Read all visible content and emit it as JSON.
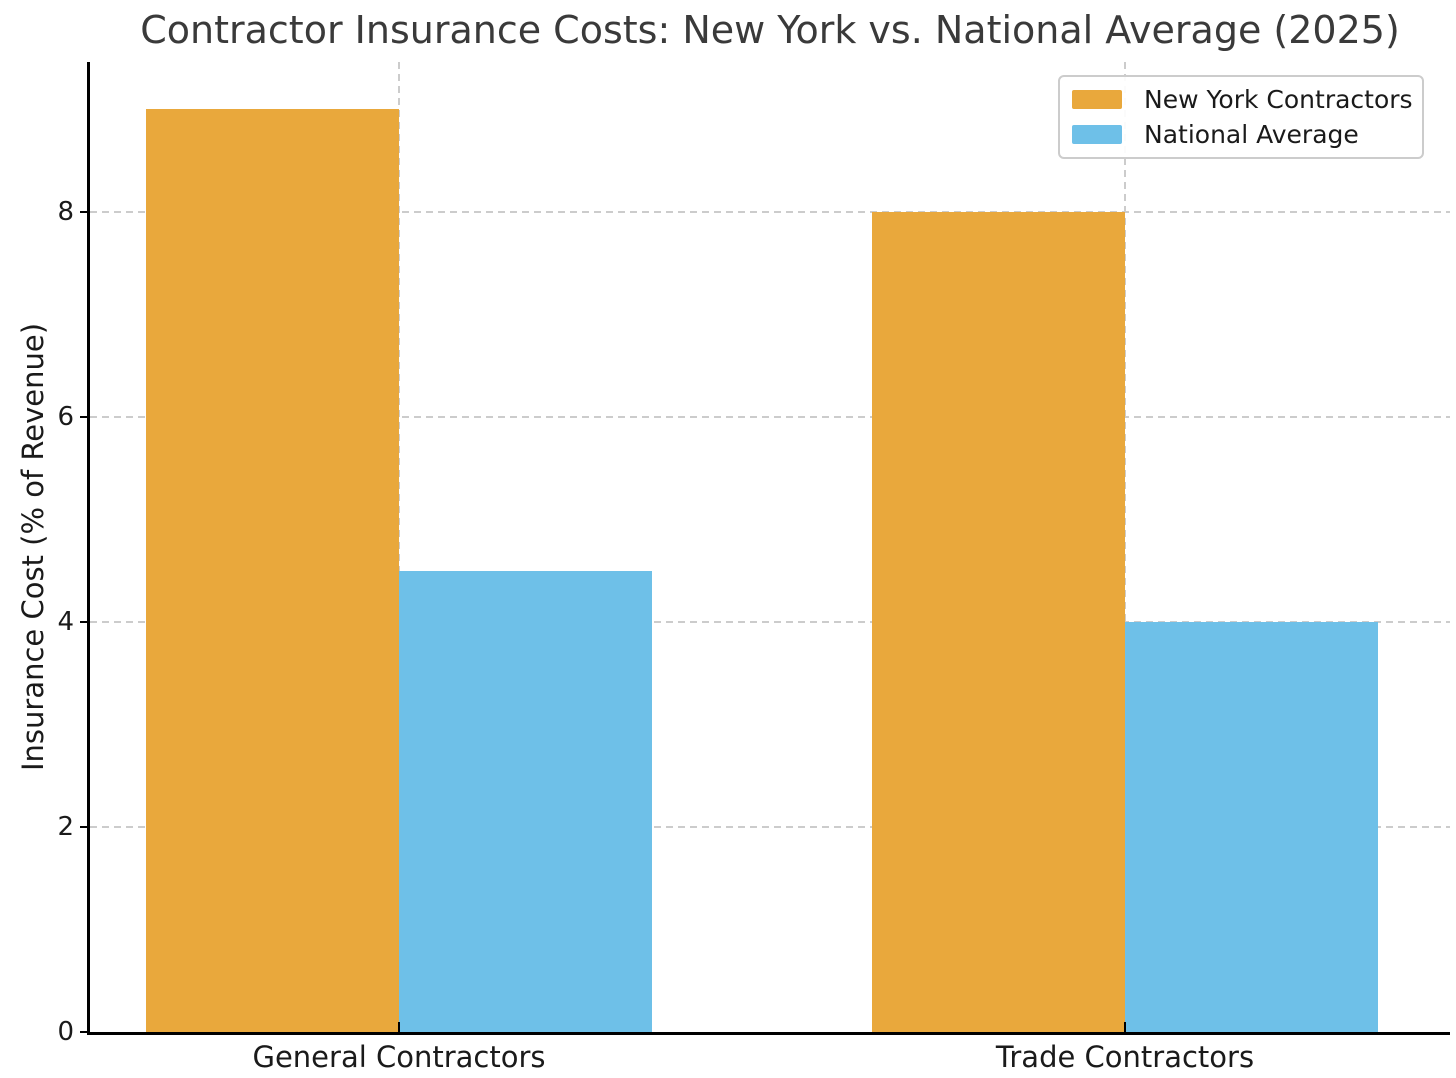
{
  "chart_data": {
    "type": "bar",
    "title": "Contractor Insurance Costs: New York vs. National Average (2025)",
    "xlabel": "",
    "ylabel": "Insurance Cost (% of Revenue)",
    "categories": [
      "General Contractors",
      "Trade Contractors"
    ],
    "series": [
      {
        "name": "New York Contractors",
        "color": "#E9A83C",
        "values": [
          9.0,
          8.0
        ]
      },
      {
        "name": "National Average",
        "color": "#6EC0E8",
        "values": [
          4.5,
          4.0
        ]
      }
    ],
    "yticks": [
      0,
      2,
      4,
      6,
      8
    ],
    "ylim": [
      0,
      9.46
    ],
    "grid": true,
    "grid_style": "dashed",
    "legend_position": "upper right",
    "axis_color": "#000000",
    "grid_color": "#cccccc",
    "text_color": "#1a1a1a"
  }
}
